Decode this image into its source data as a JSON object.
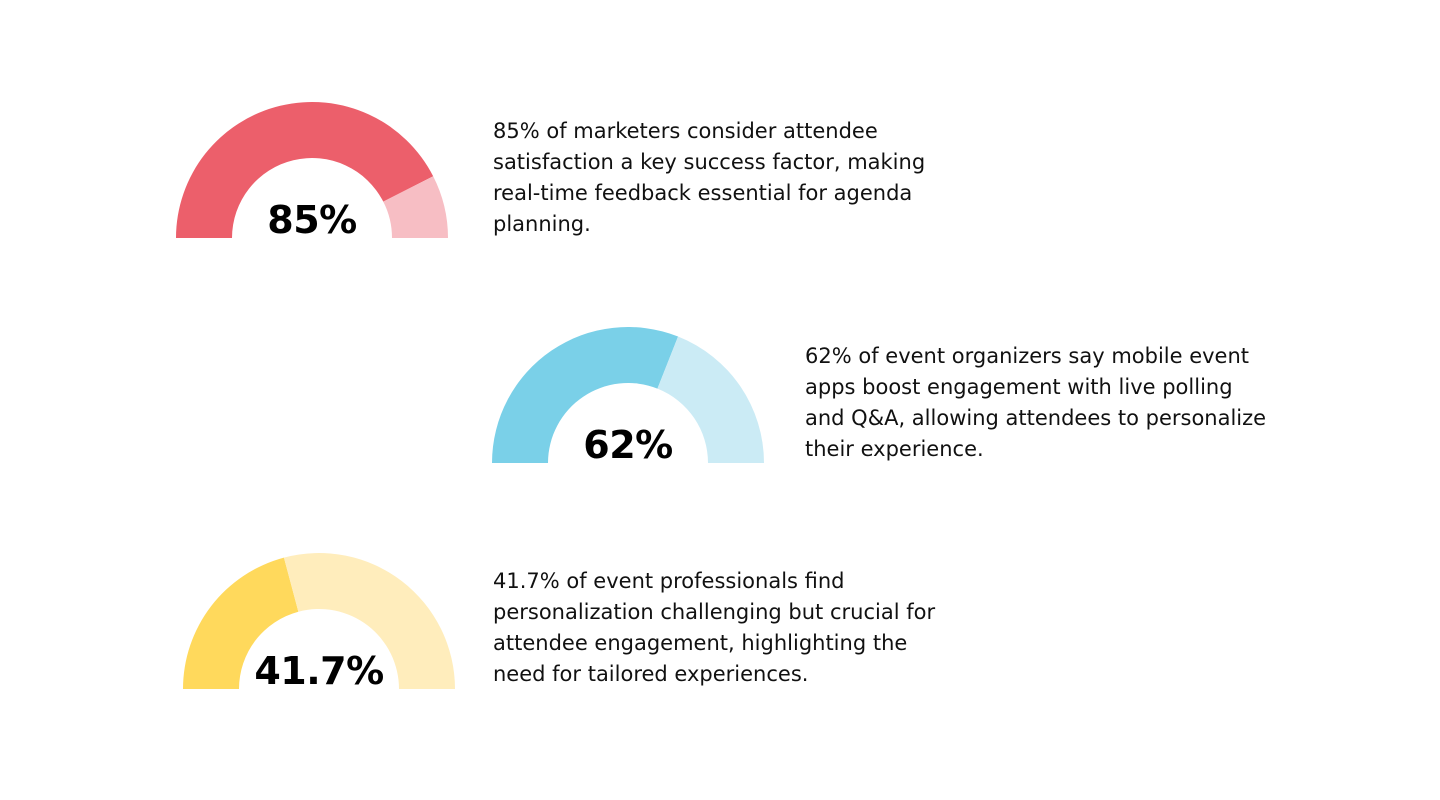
{
  "chart_data": [
    {
      "type": "gauge",
      "value": 85,
      "max": 100,
      "label": "85%",
      "colors": {
        "filled": "#EC5F6B",
        "remaining": "#F7BEC4"
      },
      "description": "85% of marketers consider attendee satisfaction a key success factor, making real-time feedback essential for agenda planning."
    },
    {
      "type": "gauge",
      "value": 62,
      "max": 100,
      "label": "62%",
      "colors": {
        "filled": "#7AD0E8",
        "remaining": "#CBEBF5"
      },
      "description": "62% of event organizers say mobile event apps boost engagement with live polling and Q&A, allowing attendees to personalize their experience."
    },
    {
      "type": "gauge",
      "value": 41.7,
      "max": 100,
      "label": "41.7%",
      "colors": {
        "filled": "#FFD95C",
        "remaining": "#FFEDBC"
      },
      "description": "41.7% of event professionals find personalization challenging but crucial for attendee engagement, highlighting the need for tailored experiences."
    }
  ]
}
